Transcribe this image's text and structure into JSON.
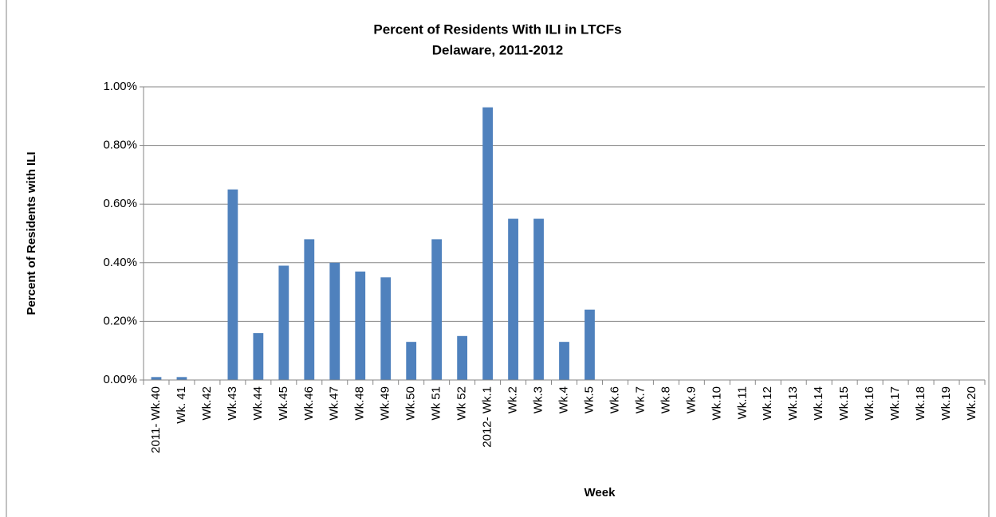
{
  "chart_data": {
    "type": "bar",
    "title": "Percent of Residents With ILI in LTCFs",
    "subtitle": "Delaware, 2011-2012",
    "x_label": "Week",
    "y_label": "Percent of Residents with ILI",
    "categories": [
      "2011- Wk.40",
      "Wk. 41",
      "Wk.42",
      "Wk.43",
      "Wk.44",
      "Wk.45",
      "Wk.46",
      "Wk.47",
      "Wk.48",
      "Wk.49",
      "Wk.50",
      "Wk 51",
      "Wk 52",
      "2012- Wk.1",
      "Wk.2",
      "Wk.3",
      "Wk.4",
      "Wk.5",
      "Wk.6",
      "Wk.7",
      "Wk.8",
      "Wk.9",
      "Wk.10",
      "Wk.11",
      "Wk.12",
      "Wk.13",
      "Wk.14",
      "Wk.15",
      "Wk.16",
      "Wk.17",
      "Wk.18",
      "Wk.19",
      "Wk.20"
    ],
    "values": [
      0.01,
      0.01,
      0,
      0.65,
      0.16,
      0.39,
      0.48,
      0.4,
      0.37,
      0.35,
      0.13,
      0.48,
      0.15,
      0.93,
      0.55,
      0.55,
      0.13,
      0.24,
      0,
      0,
      0,
      0,
      0,
      0,
      0,
      0,
      0,
      0,
      0,
      0,
      0,
      0,
      0
    ],
    "color": "#4f81bd",
    "ylim": [
      0,
      1
    ],
    "yticks": [
      {
        "value": 0,
        "label": "0.00%"
      },
      {
        "value": 0.2,
        "label": "0.20%"
      },
      {
        "value": 0.4,
        "label": "0.40%"
      },
      {
        "value": 0.6,
        "label": "0.60%"
      },
      {
        "value": 0.8,
        "label": "0.80%"
      },
      {
        "value": 1,
        "label": "1.00%"
      }
    ],
    "grid": true
  }
}
